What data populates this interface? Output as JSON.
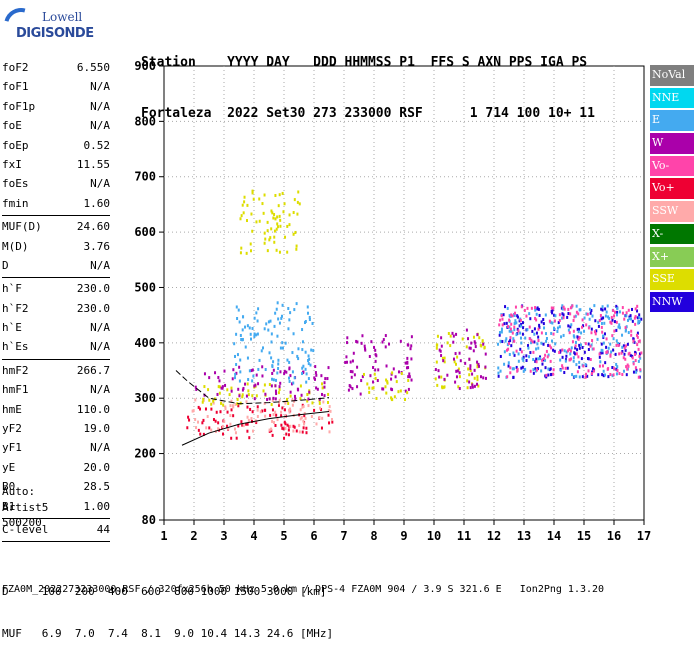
{
  "logo": {
    "line1": "Lowell",
    "line2": "DIGISONDE"
  },
  "header": {
    "line1": "Station    YYYY DAY   DDD HHMMSS P1  FFS S AXN PPS IGA PS",
    "line2": "Fortaleza  2022 Set30 273 233000 RSF      1 714 100 10+ 11"
  },
  "params": [
    [
      {
        "label": "foF2",
        "value": "6.550"
      },
      {
        "label": "foF1",
        "value": "N/A"
      },
      {
        "label": "foF1p",
        "value": "N/A"
      },
      {
        "label": "foE",
        "value": "N/A"
      },
      {
        "label": "foEp",
        "value": "0.52"
      },
      {
        "label": "fxI",
        "value": "11.55"
      },
      {
        "label": "foEs",
        "value": "N/A"
      },
      {
        "label": "fmin",
        "value": "1.60"
      }
    ],
    [
      {
        "label": "MUF(D)",
        "value": "24.60"
      },
      {
        "label": "M(D)",
        "value": "3.76"
      },
      {
        "label": "D",
        "value": "N/A"
      }
    ],
    [
      {
        "label": "h`F",
        "value": "230.0"
      },
      {
        "label": "h`F2",
        "value": "230.0"
      },
      {
        "label": "h`E",
        "value": "N/A"
      },
      {
        "label": "h`Es",
        "value": "N/A"
      }
    ],
    [
      {
        "label": "hmF2",
        "value": "266.7"
      },
      {
        "label": "hmF1",
        "value": "N/A"
      },
      {
        "label": "hmE",
        "value": "110.0"
      },
      {
        "label": "yF2",
        "value": "19.0"
      },
      {
        "label": "yF1",
        "value": "N/A"
      },
      {
        "label": "yE",
        "value": "20.0"
      },
      {
        "label": "B0",
        "value": "28.5"
      },
      {
        "label": "B1",
        "value": "1.00"
      }
    ],
    [
      {
        "label": "C-level",
        "value": "44"
      }
    ]
  ],
  "auto": {
    "line1": "Auto:",
    "line2": "Artist5",
    "line3": "500200"
  },
  "legend": [
    {
      "label": "NoVal",
      "color": "#7f7f7f"
    },
    {
      "label": "NNE",
      "color": "#00d8f0"
    },
    {
      "label": "E",
      "color": "#44aaf0"
    },
    {
      "label": "W",
      "color": "#aa00aa"
    },
    {
      "label": "Vo-",
      "color": "#ff44aa"
    },
    {
      "label": "Vo+",
      "color": "#ee0033"
    },
    {
      "label": "SSW",
      "color": "#ffaaaa"
    },
    {
      "label": "X-",
      "color": "#007700"
    },
    {
      "label": "X+",
      "color": "#88cc55"
    },
    {
      "label": "SSE",
      "color": "#dddd00"
    },
    {
      "label": "NNW",
      "color": "#2200dd"
    }
  ],
  "table": {
    "line1": "D     100  200  400  600  800 1000 1500 3000 [km]",
    "line2": "MUF   6.9  7.0  7.4  8.1  9.0 10.4 14.3 24.6 [MHz]"
  },
  "footer": "FZA0M_2022273233000.RSF / 320fx256h 50 kHz 5.0 km / DPS-4 FZA0M 904 / 3.9 S 321.6 E   Ion2Png 1.3.20",
  "chart_data": {
    "type": "scatter",
    "title": "",
    "xlabel": "",
    "ylabel": "",
    "xlim": [
      1,
      17
    ],
    "ylim": [
      80,
      900
    ],
    "xticks": [
      1,
      2,
      3,
      4,
      5,
      6,
      7,
      8,
      9,
      10,
      11,
      12,
      13,
      14,
      15,
      16,
      17
    ],
    "yticks": [
      80,
      200,
      300,
      400,
      500,
      600,
      700,
      800,
      900
    ],
    "scatter_regions": [
      {
        "x": [
          1.7,
          6.6
        ],
        "y": [
          230,
          290
        ],
        "color": "#ee0033"
      },
      {
        "x": [
          1.8,
          6.6
        ],
        "y": [
          240,
          300
        ],
        "color": "#ffaaaa"
      },
      {
        "x": [
          2.2,
          6.6
        ],
        "y": [
          290,
          330
        ],
        "color": "#dddd00"
      },
      {
        "x": [
          2.0,
          6.5
        ],
        "y": [
          300,
          360
        ],
        "color": "#aa00aa"
      },
      {
        "x": [
          3.3,
          6.0
        ],
        "y": [
          330,
          480
        ],
        "color": "#44aaf0"
      },
      {
        "x": [
          3.5,
          5.5
        ],
        "y": [
          560,
          680
        ],
        "color": "#dddd00"
      },
      {
        "x": [
          7.0,
          9.3
        ],
        "y": [
          310,
          420
        ],
        "color": "#aa00aa"
      },
      {
        "x": [
          7.5,
          9.2
        ],
        "y": [
          300,
          350
        ],
        "color": "#dddd00"
      },
      {
        "x": [
          10.0,
          11.7
        ],
        "y": [
          320,
          420
        ],
        "color": "#dddd00"
      },
      {
        "x": [
          10.0,
          11.7
        ],
        "y": [
          320,
          430
        ],
        "color": "#aa00aa"
      },
      {
        "x": [
          12.1,
          16.9
        ],
        "y": [
          340,
          470
        ],
        "color": "#2200dd"
      },
      {
        "x": [
          12.1,
          16.9
        ],
        "y": [
          340,
          470
        ],
        "color": "#44aaf0"
      },
      {
        "x": [
          12.1,
          16.9
        ],
        "y": [
          340,
          470
        ],
        "color": "#ff44aa"
      }
    ],
    "profile_curve": {
      "x": [
        1.6,
        2.5,
        3.5,
        4.5,
        5.5,
        6.5
      ],
      "y": [
        215,
        237,
        253,
        263,
        270,
        276
      ]
    },
    "trace_curve": {
      "x": [
        1.4,
        1.8,
        2.5,
        3.5,
        4.5,
        5.5,
        6.5
      ],
      "y": [
        350,
        330,
        300,
        290,
        292,
        296,
        301
      ]
    }
  }
}
